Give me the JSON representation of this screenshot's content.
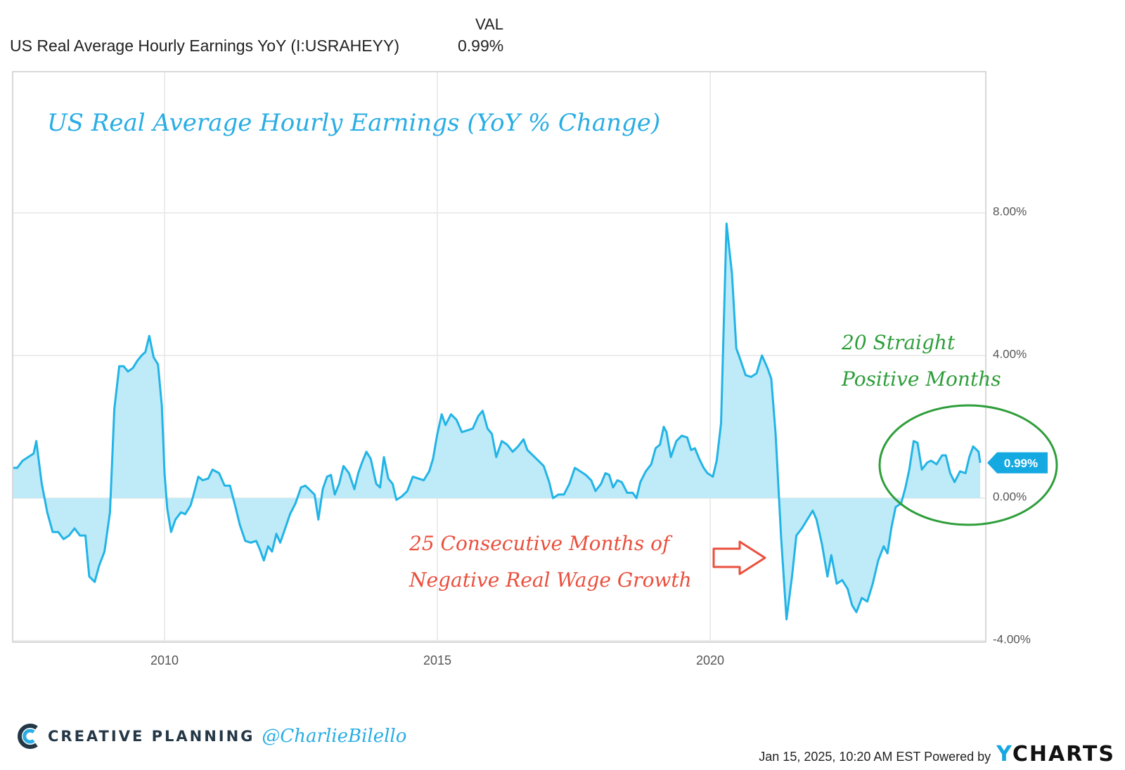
{
  "header": {
    "column_label": "VAL",
    "series_name": "US Real Average Hourly Earnings YoY (I:USRAHEYY)",
    "series_value": "0.99%"
  },
  "chart_data": {
    "type": "area",
    "title": "US Real Average Hourly Earnings (YoY % Change)",
    "ylim": [
      -4,
      12
    ],
    "xlim": [
      2007.2,
      2024.95
    ],
    "x_tick_labels": [
      "2010",
      "2015",
      "2020"
    ],
    "x_ticks": [
      2010,
      2015,
      2020
    ],
    "y_tick_labels": [
      "8.00%",
      "4.00%",
      "0.00%",
      "-4.00%"
    ],
    "y_ticks": [
      8,
      4,
      0,
      -4
    ],
    "grid": true,
    "last_value_label": "0.99%",
    "colors": {
      "line": "#22b4e6",
      "fill": "#bfeaf8",
      "badge": "#15a9e1"
    },
    "annotations": [
      {
        "text_lines": [
          "20 Straight",
          "Positive Months"
        ],
        "color": "#2e9e3a"
      },
      {
        "text_lines": [
          "25 Consecutive Months of",
          "Negative Real Wage Growth"
        ],
        "color": "#ea4f3d"
      }
    ],
    "points": [
      [
        2007.2,
        0.85
      ],
      [
        2007.3,
        0.85
      ],
      [
        2007.4,
        1.05
      ],
      [
        2007.5,
        1.15
      ],
      [
        2007.6,
        1.25
      ],
      [
        2007.65,
        1.6
      ],
      [
        2007.75,
        0.4
      ],
      [
        2007.85,
        -0.4
      ],
      [
        2007.95,
        -0.95
      ],
      [
        2008.05,
        -0.95
      ],
      [
        2008.15,
        -1.15
      ],
      [
        2008.25,
        -1.05
      ],
      [
        2008.35,
        -0.85
      ],
      [
        2008.45,
        -1.05
      ],
      [
        2008.55,
        -1.05
      ],
      [
        2008.62,
        -2.2
      ],
      [
        2008.72,
        -2.35
      ],
      [
        2008.8,
        -1.9
      ],
      [
        2008.9,
        -1.5
      ],
      [
        2009.0,
        -0.4
      ],
      [
        2009.08,
        2.5
      ],
      [
        2009.17,
        3.7
      ],
      [
        2009.25,
        3.7
      ],
      [
        2009.33,
        3.55
      ],
      [
        2009.42,
        3.65
      ],
      [
        2009.5,
        3.85
      ],
      [
        2009.58,
        4.0
      ],
      [
        2009.65,
        4.1
      ],
      [
        2009.72,
        4.55
      ],
      [
        2009.8,
        3.95
      ],
      [
        2009.88,
        3.75
      ],
      [
        2009.95,
        2.6
      ],
      [
        2010.0,
        0.7
      ],
      [
        2010.05,
        -0.3
      ],
      [
        2010.12,
        -0.95
      ],
      [
        2010.2,
        -0.6
      ],
      [
        2010.3,
        -0.4
      ],
      [
        2010.38,
        -0.45
      ],
      [
        2010.48,
        -0.2
      ],
      [
        2010.55,
        0.2
      ],
      [
        2010.62,
        0.6
      ],
      [
        2010.7,
        0.5
      ],
      [
        2010.8,
        0.55
      ],
      [
        2010.88,
        0.8
      ],
      [
        2011.0,
        0.7
      ],
      [
        2011.1,
        0.35
      ],
      [
        2011.2,
        0.35
      ],
      [
        2011.3,
        -0.25
      ],
      [
        2011.38,
        -0.75
      ],
      [
        2011.48,
        -1.2
      ],
      [
        2011.58,
        -1.25
      ],
      [
        2011.68,
        -1.2
      ],
      [
        2011.75,
        -1.45
      ],
      [
        2011.82,
        -1.75
      ],
      [
        2011.9,
        -1.35
      ],
      [
        2011.97,
        -1.5
      ],
      [
        2012.05,
        -1.0
      ],
      [
        2012.12,
        -1.25
      ],
      [
        2012.2,
        -0.9
      ],
      [
        2012.3,
        -0.45
      ],
      [
        2012.4,
        -0.15
      ],
      [
        2012.5,
        0.3
      ],
      [
        2012.58,
        0.35
      ],
      [
        2012.65,
        0.25
      ],
      [
        2012.75,
        0.1
      ],
      [
        2012.82,
        -0.6
      ],
      [
        2012.9,
        0.25
      ],
      [
        2012.98,
        0.6
      ],
      [
        2013.05,
        0.65
      ],
      [
        2013.12,
        0.1
      ],
      [
        2013.2,
        0.4
      ],
      [
        2013.28,
        0.9
      ],
      [
        2013.38,
        0.7
      ],
      [
        2013.48,
        0.25
      ],
      [
        2013.55,
        0.7
      ],
      [
        2013.62,
        1.0
      ],
      [
        2013.7,
        1.3
      ],
      [
        2013.78,
        1.1
      ],
      [
        2013.88,
        0.4
      ],
      [
        2013.95,
        0.3
      ],
      [
        2014.02,
        1.15
      ],
      [
        2014.1,
        0.55
      ],
      [
        2014.18,
        0.4
      ],
      [
        2014.25,
        -0.05
      ],
      [
        2014.35,
        0.05
      ],
      [
        2014.45,
        0.2
      ],
      [
        2014.55,
        0.6
      ],
      [
        2014.65,
        0.55
      ],
      [
        2014.75,
        0.5
      ],
      [
        2014.85,
        0.75
      ],
      [
        2014.92,
        1.1
      ],
      [
        2015.0,
        1.8
      ],
      [
        2015.08,
        2.35
      ],
      [
        2015.15,
        2.05
      ],
      [
        2015.25,
        2.35
      ],
      [
        2015.35,
        2.2
      ],
      [
        2015.45,
        1.85
      ],
      [
        2015.55,
        1.9
      ],
      [
        2015.65,
        1.95
      ],
      [
        2015.75,
        2.3
      ],
      [
        2015.83,
        2.45
      ],
      [
        2015.92,
        1.95
      ],
      [
        2016.0,
        1.8
      ],
      [
        2016.08,
        1.15
      ],
      [
        2016.18,
        1.6
      ],
      [
        2016.28,
        1.5
      ],
      [
        2016.38,
        1.3
      ],
      [
        2016.48,
        1.45
      ],
      [
        2016.58,
        1.65
      ],
      [
        2016.65,
        1.35
      ],
      [
        2016.75,
        1.2
      ],
      [
        2016.85,
        1.05
      ],
      [
        2016.95,
        0.9
      ],
      [
        2017.05,
        0.45
      ],
      [
        2017.12,
        0.0
      ],
      [
        2017.22,
        0.1
      ],
      [
        2017.32,
        0.1
      ],
      [
        2017.42,
        0.4
      ],
      [
        2017.52,
        0.85
      ],
      [
        2017.62,
        0.75
      ],
      [
        2017.72,
        0.65
      ],
      [
        2017.82,
        0.5
      ],
      [
        2017.9,
        0.2
      ],
      [
        2018.0,
        0.4
      ],
      [
        2018.08,
        0.7
      ],
      [
        2018.15,
        0.65
      ],
      [
        2018.22,
        0.3
      ],
      [
        2018.3,
        0.5
      ],
      [
        2018.38,
        0.45
      ],
      [
        2018.48,
        0.15
      ],
      [
        2018.58,
        0.15
      ],
      [
        2018.65,
        0.0
      ],
      [
        2018.72,
        0.45
      ],
      [
        2018.82,
        0.75
      ],
      [
        2018.92,
        0.95
      ],
      [
        2019.0,
        1.4
      ],
      [
        2019.08,
        1.5
      ],
      [
        2019.15,
        2.0
      ],
      [
        2019.2,
        1.85
      ],
      [
        2019.28,
        1.15
      ],
      [
        2019.38,
        1.6
      ],
      [
        2019.48,
        1.75
      ],
      [
        2019.58,
        1.7
      ],
      [
        2019.65,
        1.35
      ],
      [
        2019.72,
        1.4
      ],
      [
        2019.8,
        1.1
      ],
      [
        2019.88,
        0.85
      ],
      [
        2019.95,
        0.7
      ],
      [
        2020.05,
        0.6
      ],
      [
        2020.12,
        1.05
      ],
      [
        2020.2,
        2.1
      ],
      [
        2020.3,
        7.7
      ],
      [
        2020.4,
        6.3
      ],
      [
        2020.48,
        4.2
      ],
      [
        2020.55,
        3.9
      ],
      [
        2020.65,
        3.45
      ],
      [
        2020.75,
        3.4
      ],
      [
        2020.85,
        3.5
      ],
      [
        2020.95,
        4.0
      ],
      [
        2021.05,
        3.65
      ],
      [
        2021.12,
        3.35
      ],
      [
        2021.2,
        1.8
      ],
      [
        2021.3,
        -1.1
      ],
      [
        2021.4,
        -3.4
      ],
      [
        2021.5,
        -2.2
      ],
      [
        2021.58,
        -1.05
      ],
      [
        2021.68,
        -0.85
      ],
      [
        2021.78,
        -0.6
      ],
      [
        2021.88,
        -0.35
      ],
      [
        2021.95,
        -0.6
      ],
      [
        2022.05,
        -1.3
      ],
      [
        2022.15,
        -2.2
      ],
      [
        2022.22,
        -1.6
      ],
      [
        2022.32,
        -2.4
      ],
      [
        2022.42,
        -2.3
      ],
      [
        2022.52,
        -2.55
      ],
      [
        2022.6,
        -3.0
      ],
      [
        2022.68,
        -3.2
      ],
      [
        2022.78,
        -2.8
      ],
      [
        2022.88,
        -2.9
      ],
      [
        2022.98,
        -2.4
      ],
      [
        2023.08,
        -1.75
      ],
      [
        2023.18,
        -1.35
      ],
      [
        2023.25,
        -1.55
      ],
      [
        2023.32,
        -0.85
      ],
      [
        2023.4,
        -0.25
      ],
      [
        2023.5,
        -0.15
      ],
      [
        2023.58,
        0.3
      ],
      [
        2023.65,
        0.8
      ],
      [
        2023.73,
        1.6
      ],
      [
        2023.8,
        1.55
      ],
      [
        2023.88,
        0.8
      ],
      [
        2023.98,
        1.0
      ],
      [
        2024.05,
        1.05
      ],
      [
        2024.15,
        0.95
      ],
      [
        2024.25,
        1.2
      ],
      [
        2024.32,
        1.2
      ],
      [
        2024.4,
        0.7
      ],
      [
        2024.48,
        0.45
      ],
      [
        2024.58,
        0.75
      ],
      [
        2024.68,
        0.7
      ],
      [
        2024.75,
        1.15
      ],
      [
        2024.82,
        1.45
      ],
      [
        2024.92,
        1.3
      ],
      [
        2024.95,
        0.99
      ]
    ]
  },
  "footer": {
    "brand": "CREATIVE PLANNING",
    "handle": "@CharlieBilello",
    "timestamp": "Jan 15, 2025, 10:20 AM EST Powered by",
    "ycharts_y": "Y",
    "ycharts_rest": "CHARTS"
  }
}
